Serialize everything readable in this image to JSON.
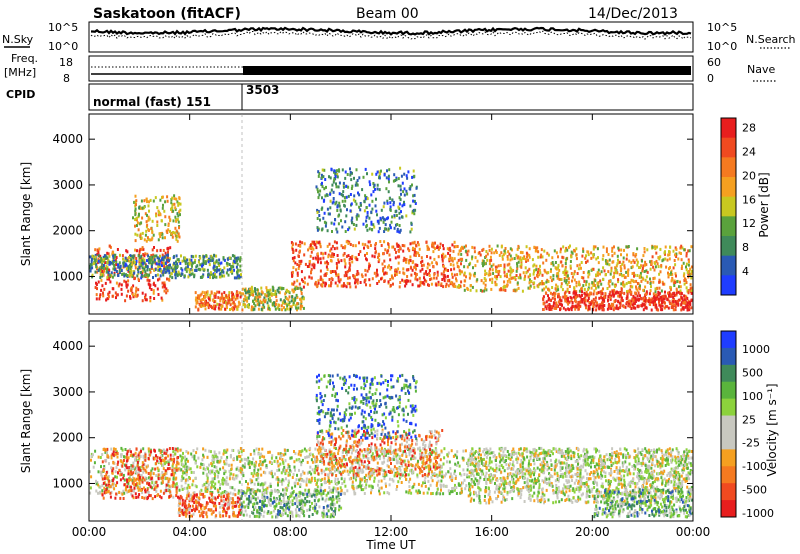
{
  "header": {
    "station": "Saskatoon (fitACF)",
    "beam": "Beam 00",
    "date": "14/Dec/2013"
  },
  "noise_panel": {
    "left_label": "N.Sky",
    "left_ticks": [
      "10^5",
      "10^0"
    ],
    "right_label": "N.Search",
    "right_ticks": [
      "10^5",
      "10^0"
    ]
  },
  "freq_panel": {
    "left_label_1": "Freq.",
    "left_label_2": "[MHz]",
    "left_ticks": [
      "18",
      "8"
    ],
    "right_label": "Nave",
    "right_ticks": [
      "60",
      "0"
    ]
  },
  "cpid_panel": {
    "label": "CPID",
    "programs": [
      {
        "name": "normal (fast) 151",
        "start": "00:00"
      },
      {
        "name": "3503",
        "start": "06:00"
      }
    ]
  },
  "colors": {
    "power_scale": [
      "#1f3dff",
      "#2a5ab4",
      "#3f8a5a",
      "#5aa23c",
      "#c8c820",
      "#f5a020",
      "#f57a20",
      "#f04a20",
      "#e81e1e"
    ],
    "velocity_scale": [
      "#1f3dff",
      "#2a5ab4",
      "#3f8a5a",
      "#5ab43c",
      "#8cd23c",
      "#c8c8c0",
      "#c8c8c0",
      "#f5a020",
      "#f57a20",
      "#f04a20",
      "#e81e1e"
    ]
  },
  "chart_data": [
    {
      "type": "heatmap",
      "title": "",
      "xlabel": "Time UT",
      "ylabel": "Slant Range [km]",
      "x_ticks": [
        "00:00",
        "04:00",
        "08:00",
        "12:00",
        "16:00",
        "20:00",
        "00:00"
      ],
      "y_ticks": [
        "1000",
        "2000",
        "3000",
        "4000"
      ],
      "ylim": [
        180,
        4550
      ],
      "colorbar": {
        "label": "Power [dB]",
        "ticks": [
          "4",
          "8",
          "12",
          "16",
          "20",
          "24",
          "28"
        ]
      },
      "regions": [
        {
          "t0": 0.2,
          "t1": 3.2,
          "r0": 500,
          "r1": 1700,
          "level": 0.85
        },
        {
          "t0": 0.0,
          "t1": 6.0,
          "r0": 1000,
          "r1": 1500,
          "level": 0.3
        },
        {
          "t0": 1.7,
          "t1": 3.6,
          "r0": 1800,
          "r1": 2800,
          "level": 0.55
        },
        {
          "t0": 4.2,
          "t1": 6.0,
          "r0": 300,
          "r1": 700,
          "level": 0.75
        },
        {
          "t0": 6.0,
          "t1": 8.5,
          "r0": 300,
          "r1": 800,
          "level": 0.5
        },
        {
          "t0": 8.0,
          "t1": 14.5,
          "r0": 800,
          "r1": 1800,
          "level": 0.8
        },
        {
          "t0": 14.5,
          "t1": 24.0,
          "r0": 700,
          "r1": 1700,
          "level": 0.6
        },
        {
          "t0": 18.0,
          "t1": 24.0,
          "r0": 300,
          "r1": 700,
          "level": 0.9
        },
        {
          "t0": 9.0,
          "t1": 13.0,
          "r0": 2000,
          "r1": 3400,
          "level": 0.25
        }
      ]
    },
    {
      "type": "heatmap",
      "title": "",
      "xlabel": "Time UT",
      "ylabel": "Slant Range [km]",
      "x_ticks": [
        "00:00",
        "04:00",
        "08:00",
        "12:00",
        "16:00",
        "20:00",
        "00:00"
      ],
      "y_ticks": [
        "1000",
        "2000",
        "3000",
        "4000"
      ],
      "ylim": [
        180,
        4550
      ],
      "colorbar": {
        "label": "Velocity [m s⁻¹]",
        "ticks": [
          "1000",
          "500",
          "100",
          "25",
          "-25",
          "-100",
          "-500",
          "-1000"
        ]
      },
      "regions": [
        {
          "t0": 0.0,
          "t1": 24.0,
          "r0": 800,
          "r1": 1800,
          "level": 0.5
        },
        {
          "t0": 0.5,
          "t1": 3.5,
          "r0": 700,
          "r1": 1800,
          "level": 0.85
        },
        {
          "t0": 3.5,
          "t1": 6.0,
          "r0": 300,
          "r1": 800,
          "level": 0.8
        },
        {
          "t0": 6.0,
          "t1": 10.0,
          "r0": 300,
          "r1": 900,
          "level": 0.35
        },
        {
          "t0": 9.0,
          "t1": 14.0,
          "r0": 1200,
          "r1": 2200,
          "level": 0.75
        },
        {
          "t0": 9.0,
          "t1": 13.0,
          "r0": 2000,
          "r1": 3400,
          "level": 0.2
        },
        {
          "t0": 15.0,
          "t1": 24.0,
          "r0": 600,
          "r1": 1800,
          "level": 0.5
        },
        {
          "t0": 20.0,
          "t1": 24.0,
          "r0": 300,
          "r1": 900,
          "level": 0.35
        }
      ]
    }
  ]
}
